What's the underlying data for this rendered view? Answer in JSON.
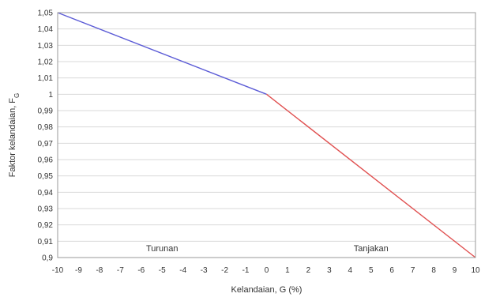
{
  "chart_data": {
    "type": "line",
    "title": "",
    "xlabel": "Kelandaian, G (%)",
    "ylabel_main": "Faktor kelandaian, F",
    "ylabel_sub": "G",
    "xlim": [
      -10,
      10
    ],
    "ylim": [
      0.9,
      1.05
    ],
    "x_ticks": [
      -10,
      -9,
      -8,
      -7,
      -6,
      -5,
      -4,
      -3,
      -2,
      -1,
      0,
      1,
      2,
      3,
      4,
      5,
      6,
      7,
      8,
      9,
      10
    ],
    "x_tick_labels": [
      "-10",
      "-9",
      "-8",
      "-7",
      "-6",
      "-5",
      "-4",
      "-3",
      "-2",
      "-1",
      "0",
      "1",
      "2",
      "3",
      "4",
      "5",
      "6",
      "7",
      "8",
      "9",
      "10"
    ],
    "y_ticks": [
      0.9,
      0.91,
      0.92,
      0.93,
      0.94,
      0.95,
      0.96,
      0.97,
      0.98,
      0.99,
      1.0,
      1.01,
      1.02,
      1.03,
      1.04,
      1.05
    ],
    "y_tick_labels": [
      "0,9",
      "0,91",
      "0,92",
      "0,93",
      "0,94",
      "0,95",
      "0,96",
      "0,97",
      "0,98",
      "0,99",
      "1",
      "1,01",
      "1,02",
      "1,03",
      "1,04",
      "1,05"
    ],
    "grid": true,
    "series": [
      {
        "x": [
          -10,
          0
        ],
        "y": [
          1.05,
          1.0
        ],
        "color": "#5b5bd6"
      },
      {
        "x": [
          0,
          10
        ],
        "y": [
          1.0,
          0.9
        ],
        "color": "#e05050"
      }
    ],
    "annotations": [
      {
        "text": "Turunan",
        "x": -5,
        "y": 0.903
      },
      {
        "text": "Tanjakan",
        "x": 5,
        "y": 0.903
      }
    ]
  }
}
